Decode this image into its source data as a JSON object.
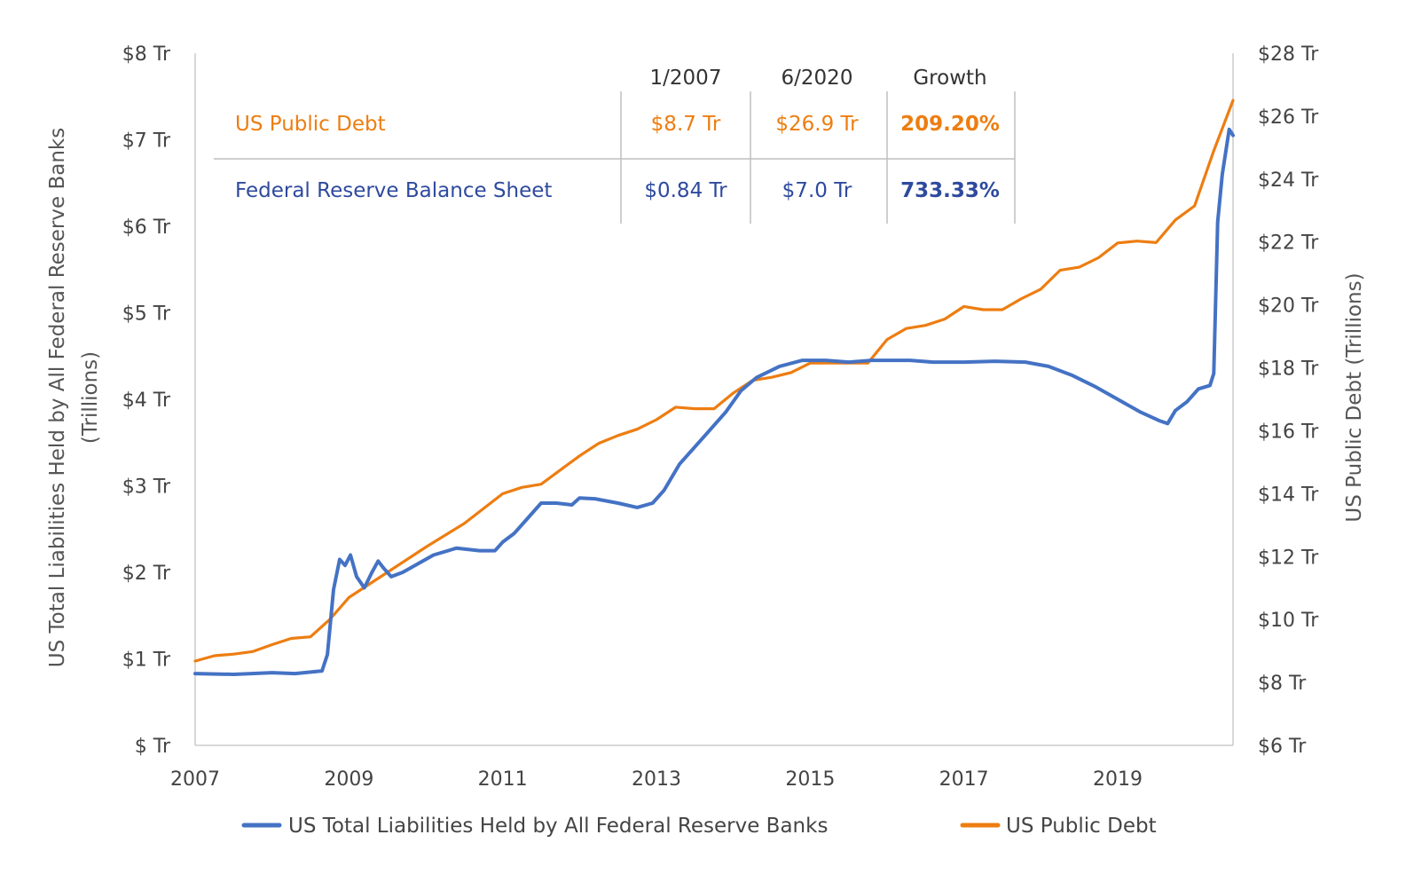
{
  "colors": {
    "fed": "#4472c4",
    "debt": "#ed7d11",
    "fed_text": "#2e4a9e",
    "axis": "#cccccc",
    "table_line": "#bfbfbf"
  },
  "table": {
    "headers": [
      "1/2007",
      "6/2020",
      "Growth"
    ],
    "rows": [
      {
        "label": "US Public Debt",
        "v2007": "$8.7 Tr",
        "v2020": "$26.9 Tr",
        "growth": "209.20%"
      },
      {
        "label": "Federal Reserve Balance Sheet",
        "v2007": "$0.84 Tr",
        "v2020": "$7.0 Tr",
        "growth": "733.33%"
      }
    ]
  },
  "chart_data": {
    "type": "line",
    "ylabel_left_line1": "US Total Liabilities Held by All Federal Reserve Banks",
    "ylabel_left_line2": "(Trillions)",
    "ylabel_right": "US Public Debt (Trillions)",
    "x_ticks": [
      "2007",
      "2009",
      "2011",
      "2013",
      "2015",
      "2017",
      "2019"
    ],
    "x_range": [
      2007,
      2020.5
    ],
    "y_left_ticks": [
      "$ Tr",
      "$1 Tr",
      "$2 Tr",
      "$3 Tr",
      "$4 Tr",
      "$5 Tr",
      "$6 Tr",
      "$7 Tr",
      "$8 Tr"
    ],
    "y_left_range": [
      0,
      8
    ],
    "y_right_ticks": [
      "$6 Tr",
      "$8 Tr",
      "$10 Tr",
      "$12 Tr",
      "$14 Tr",
      "$16 Tr",
      "$18 Tr",
      "$20 Tr",
      "$22 Tr",
      "$24 Tr",
      "$26 Tr",
      "$28 Tr"
    ],
    "y_right_range": [
      6,
      28
    ],
    "legend": {
      "placement": "bottom",
      "items": [
        "US Total Liabilities Held by All Federal Reserve Banks",
        "US Public Debt"
      ]
    },
    "series": [
      {
        "name": "US Total Liabilities Held by All Federal Reserve Banks",
        "axis": "left",
        "points": [
          [
            2007.0,
            0.83
          ],
          [
            2007.5,
            0.82
          ],
          [
            2008.0,
            0.84
          ],
          [
            2008.3,
            0.83
          ],
          [
            2008.65,
            0.86
          ],
          [
            2008.72,
            1.05
          ],
          [
            2008.8,
            1.8
          ],
          [
            2008.88,
            2.15
          ],
          [
            2008.95,
            2.08
          ],
          [
            2009.02,
            2.2
          ],
          [
            2009.1,
            1.95
          ],
          [
            2009.2,
            1.82
          ],
          [
            2009.3,
            2.0
          ],
          [
            2009.38,
            2.13
          ],
          [
            2009.45,
            2.05
          ],
          [
            2009.55,
            1.95
          ],
          [
            2009.7,
            2.0
          ],
          [
            2009.9,
            2.1
          ],
          [
            2010.1,
            2.2
          ],
          [
            2010.4,
            2.28
          ],
          [
            2010.7,
            2.25
          ],
          [
            2010.9,
            2.25
          ],
          [
            2011.0,
            2.35
          ],
          [
            2011.15,
            2.45
          ],
          [
            2011.3,
            2.6
          ],
          [
            2011.5,
            2.8
          ],
          [
            2011.7,
            2.8
          ],
          [
            2011.9,
            2.78
          ],
          [
            2012.0,
            2.86
          ],
          [
            2012.2,
            2.85
          ],
          [
            2012.5,
            2.8
          ],
          [
            2012.75,
            2.75
          ],
          [
            2012.95,
            2.8
          ],
          [
            2013.1,
            2.95
          ],
          [
            2013.3,
            3.25
          ],
          [
            2013.6,
            3.55
          ],
          [
            2013.9,
            3.85
          ],
          [
            2014.1,
            4.1
          ],
          [
            2014.3,
            4.25
          ],
          [
            2014.6,
            4.38
          ],
          [
            2014.9,
            4.45
          ],
          [
            2015.2,
            4.45
          ],
          [
            2015.5,
            4.43
          ],
          [
            2015.8,
            4.45
          ],
          [
            2016.0,
            4.45
          ],
          [
            2016.3,
            4.45
          ],
          [
            2016.6,
            4.43
          ],
          [
            2017.0,
            4.43
          ],
          [
            2017.4,
            4.44
          ],
          [
            2017.8,
            4.43
          ],
          [
            2018.1,
            4.38
          ],
          [
            2018.4,
            4.28
          ],
          [
            2018.7,
            4.15
          ],
          [
            2019.0,
            4.0
          ],
          [
            2019.3,
            3.85
          ],
          [
            2019.55,
            3.75
          ],
          [
            2019.65,
            3.72
          ],
          [
            2019.75,
            3.87
          ],
          [
            2019.9,
            3.97
          ],
          [
            2020.05,
            4.12
          ],
          [
            2020.2,
            4.16
          ],
          [
            2020.25,
            4.3
          ],
          [
            2020.3,
            6.05
          ],
          [
            2020.36,
            6.6
          ],
          [
            2020.45,
            7.12
          ],
          [
            2020.5,
            7.05
          ]
        ]
      },
      {
        "name": "US Public Debt",
        "axis": "right",
        "points": [
          [
            2007.0,
            8.68
          ],
          [
            2007.25,
            8.85
          ],
          [
            2007.5,
            8.9
          ],
          [
            2007.75,
            8.98
          ],
          [
            2008.0,
            9.2
          ],
          [
            2008.25,
            9.4
          ],
          [
            2008.5,
            9.45
          ],
          [
            2008.75,
            10.0
          ],
          [
            2009.0,
            10.7
          ],
          [
            2009.5,
            11.5
          ],
          [
            2010.0,
            12.3
          ],
          [
            2010.5,
            13.05
          ],
          [
            2011.0,
            14.0
          ],
          [
            2011.25,
            14.2
          ],
          [
            2011.5,
            14.3
          ],
          [
            2012.0,
            15.2
          ],
          [
            2012.25,
            15.6
          ],
          [
            2012.5,
            15.85
          ],
          [
            2012.75,
            16.05
          ],
          [
            2013.0,
            16.35
          ],
          [
            2013.25,
            16.75
          ],
          [
            2013.5,
            16.7
          ],
          [
            2013.75,
            16.7
          ],
          [
            2014.0,
            17.2
          ],
          [
            2014.25,
            17.6
          ],
          [
            2014.5,
            17.7
          ],
          [
            2014.75,
            17.85
          ],
          [
            2015.0,
            18.15
          ],
          [
            2015.25,
            18.15
          ],
          [
            2015.5,
            18.15
          ],
          [
            2015.75,
            18.15
          ],
          [
            2016.0,
            18.9
          ],
          [
            2016.25,
            19.25
          ],
          [
            2016.5,
            19.35
          ],
          [
            2016.75,
            19.55
          ],
          [
            2017.0,
            19.95
          ],
          [
            2017.25,
            19.85
          ],
          [
            2017.5,
            19.85
          ],
          [
            2017.75,
            20.2
          ],
          [
            2018.0,
            20.5
          ],
          [
            2018.25,
            21.1
          ],
          [
            2018.5,
            21.2
          ],
          [
            2018.75,
            21.5
          ],
          [
            2019.0,
            21.97
          ],
          [
            2019.25,
            22.03
          ],
          [
            2019.5,
            21.98
          ],
          [
            2019.75,
            22.7
          ],
          [
            2020.0,
            23.15
          ],
          [
            2020.25,
            24.9
          ],
          [
            2020.5,
            26.5
          ]
        ]
      }
    ]
  }
}
